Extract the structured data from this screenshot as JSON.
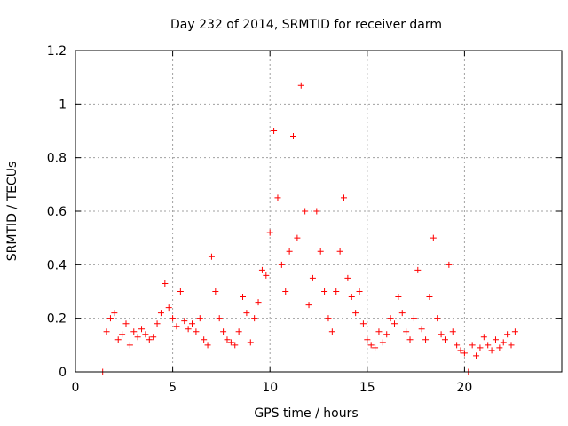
{
  "chart_data": {
    "type": "scatter",
    "title": "Day 232 of 2014, SRMTID for receiver darm",
    "xlabel": "GPS time / hours",
    "ylabel": "SRMTID / TECUs",
    "xlim": [
      0,
      25
    ],
    "ylim": [
      0,
      1.2
    ],
    "xticks": [
      0,
      5,
      10,
      15,
      20
    ],
    "xtick_labels": [
      "0",
      "5",
      "10",
      "15",
      "20"
    ],
    "yticks": [
      0,
      0.2,
      0.4,
      0.6,
      0.8,
      1.0,
      1.2
    ],
    "ytick_labels": [
      "0",
      "0.2",
      "0.4",
      "0.6",
      "0.8",
      "1",
      "1.2"
    ],
    "grid": true,
    "marker": "plus",
    "color": "#ff0000",
    "series": [
      {
        "name": "SRMTID",
        "x": [
          1.4,
          1.6,
          1.8,
          2.0,
          2.2,
          2.4,
          2.6,
          2.8,
          3.0,
          3.2,
          3.4,
          3.6,
          3.8,
          4.0,
          4.2,
          4.4,
          4.6,
          4.8,
          5.0,
          5.2,
          5.4,
          5.6,
          5.8,
          6.0,
          6.2,
          6.4,
          6.6,
          6.8,
          7.0,
          7.2,
          7.4,
          7.6,
          7.8,
          8.0,
          8.2,
          8.4,
          8.6,
          8.8,
          9.0,
          9.2,
          9.4,
          9.6,
          9.8,
          10.0,
          10.2,
          10.4,
          10.6,
          10.8,
          11.0,
          11.2,
          11.4,
          11.6,
          11.8,
          12.0,
          12.2,
          12.4,
          12.6,
          12.8,
          13.0,
          13.2,
          13.4,
          13.6,
          13.8,
          14.0,
          14.2,
          14.4,
          14.6,
          14.8,
          15.0,
          15.2,
          15.4,
          15.6,
          15.8,
          16.0,
          16.2,
          16.4,
          16.6,
          16.8,
          17.0,
          17.2,
          17.4,
          17.6,
          17.8,
          18.0,
          18.2,
          18.4,
          18.6,
          18.8,
          19.0,
          19.2,
          19.4,
          19.6,
          19.8,
          20.0,
          20.2,
          20.4,
          20.6,
          20.8,
          21.0,
          21.2,
          21.4,
          21.6,
          21.8,
          22.0,
          22.2,
          22.4,
          22.6
        ],
        "y": [
          0.0,
          0.15,
          0.2,
          0.22,
          0.12,
          0.14,
          0.18,
          0.1,
          0.15,
          0.13,
          0.16,
          0.14,
          0.12,
          0.13,
          0.18,
          0.22,
          0.33,
          0.24,
          0.2,
          0.17,
          0.3,
          0.19,
          0.16,
          0.18,
          0.15,
          0.2,
          0.12,
          0.1,
          0.43,
          0.3,
          0.2,
          0.15,
          0.12,
          0.11,
          0.1,
          0.15,
          0.28,
          0.22,
          0.11,
          0.2,
          0.26,
          0.38,
          0.36,
          0.52,
          0.9,
          0.65,
          0.4,
          0.3,
          0.45,
          0.88,
          0.5,
          1.07,
          0.6,
          0.25,
          0.35,
          0.6,
          0.45,
          0.3,
          0.2,
          0.15,
          0.3,
          0.45,
          0.65,
          0.35,
          0.28,
          0.22,
          0.3,
          0.18,
          0.12,
          0.1,
          0.09,
          0.15,
          0.11,
          0.14,
          0.2,
          0.18,
          0.28,
          0.22,
          0.15,
          0.12,
          0.2,
          0.38,
          0.16,
          0.12,
          0.28,
          0.5,
          0.2,
          0.14,
          0.12,
          0.4,
          0.15,
          0.1,
          0.08,
          0.07,
          0.0,
          0.1,
          0.06,
          0.09,
          0.13,
          0.1,
          0.08,
          0.12,
          0.09,
          0.11,
          0.14,
          0.1,
          0.15
        ]
      }
    ]
  }
}
